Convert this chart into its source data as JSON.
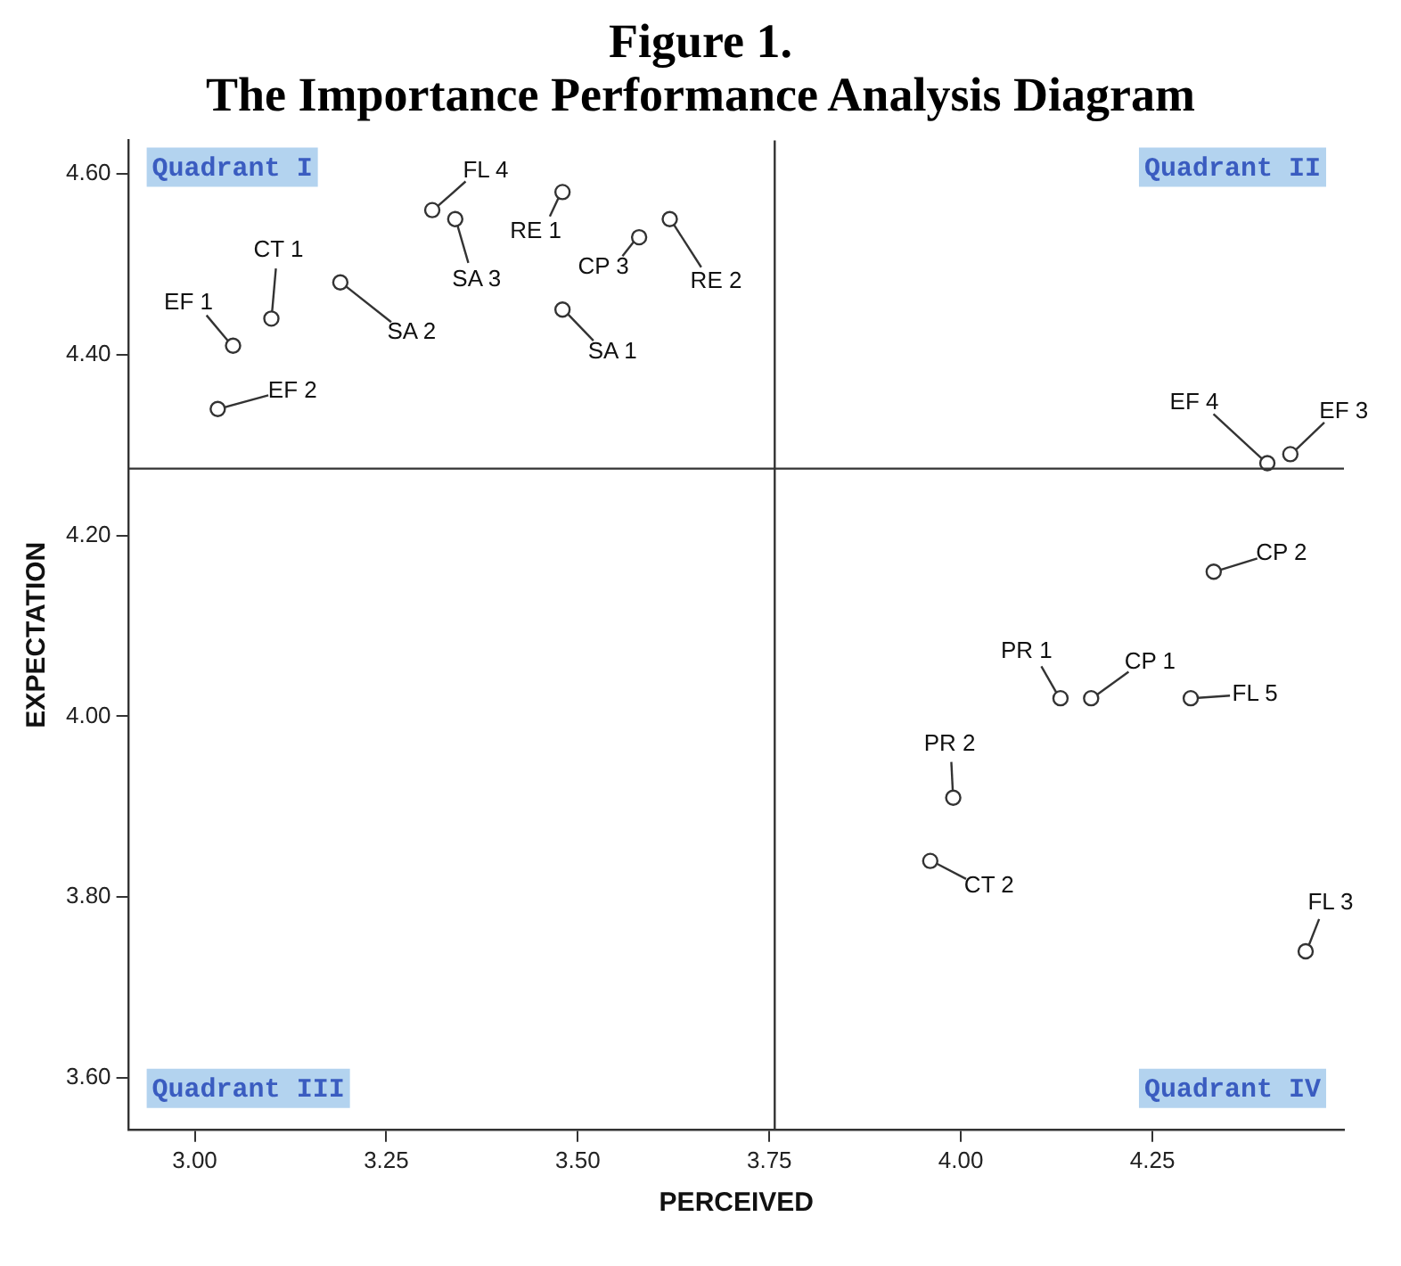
{
  "chart_data": {
    "type": "scatter",
    "title": "Figure 1.",
    "subtitle": "The Importance Performance Analysis Diagram",
    "xlabel": "PERCEIVED",
    "ylabel": "EXPECTATION",
    "series": [
      {
        "color": "#333333",
        "x": [
          3.31,
          3.34,
          3.48,
          3.58,
          3.62,
          3.48,
          3.19,
          3.1,
          3.05,
          3.03,
          4.4,
          4.43,
          4.33,
          4.13,
          4.17,
          4.3,
          3.99,
          3.96,
          4.45
        ],
        "values": [
          4.56,
          4.55,
          4.58,
          4.53,
          4.55,
          4.45,
          4.48,
          4.44,
          4.41,
          4.34,
          4.28,
          4.29,
          4.16,
          4.02,
          4.02,
          4.02,
          3.91,
          3.84,
          3.74
        ]
      }
    ],
    "xlim": [
      2.914,
      4.5
    ],
    "ylim": [
      3.543,
      4.637
    ],
    "xticks": [
      {
        "value": 3,
        "label": "3.00"
      },
      {
        "value": 3.25,
        "label": "3.25"
      },
      {
        "value": 3.5,
        "label": "3.50"
      },
      {
        "value": 3.75,
        "label": "3.75"
      },
      {
        "value": 4,
        "label": "4.00"
      },
      {
        "value": 4.25,
        "label": "4.25"
      }
    ],
    "yticks": [
      {
        "value": 3.6,
        "label": "3.60"
      },
      {
        "value": 3.8,
        "label": "3.80"
      },
      {
        "value": 4,
        "label": "4.00"
      },
      {
        "value": 4.2,
        "label": "4.20"
      },
      {
        "value": 4.4,
        "label": "4.40"
      },
      {
        "value": 4.6,
        "label": "4.60"
      }
    ],
    "ref_lines": [
      {
        "axis": "x",
        "value": 3.757,
        "color": "#333333"
      },
      {
        "axis": "y",
        "value": 4.274,
        "color": "#333333"
      }
    ],
    "marker": "circle",
    "grid": false,
    "legend": false,
    "annotations": [
      "Quadrant I",
      "Quadrant II",
      "Quadrant III",
      "Quadrant IV",
      {
        "text": "FL 4",
        "x": 3.31,
        "y": 4.56
      },
      {
        "text": "SA 3",
        "x": 3.34,
        "y": 4.55
      },
      {
        "text": "RE 1",
        "x": 3.48,
        "y": 4.58
      },
      {
        "text": "CP 3",
        "x": 3.58,
        "y": 4.53
      },
      {
        "text": "RE 2",
        "x": 3.62,
        "y": 4.55
      },
      {
        "text": "SA 1",
        "x": 3.48,
        "y": 4.45
      },
      {
        "text": "SA 2",
        "x": 3.19,
        "y": 4.48
      },
      {
        "text": "CT 1",
        "x": 3.1,
        "y": 4.44
      },
      {
        "text": "EF 1",
        "x": 3.05,
        "y": 4.41
      },
      {
        "text": "EF 2",
        "x": 3.03,
        "y": 4.34
      },
      {
        "text": "EF 4",
        "x": 4.4,
        "y": 4.28
      },
      {
        "text": "EF 3",
        "x": 4.43,
        "y": 4.29
      },
      {
        "text": "CP 2",
        "x": 4.33,
        "y": 4.16
      },
      {
        "text": "PR 1",
        "x": 4.13,
        "y": 4.02
      },
      {
        "text": "CP 1",
        "x": 4.17,
        "y": 4.02
      },
      {
        "text": "FL 5",
        "x": 4.3,
        "y": 4.02
      },
      {
        "text": "PR 2",
        "x": 3.99,
        "y": 3.91
      },
      {
        "text": "CT 2",
        "x": 3.96,
        "y": 3.84
      },
      {
        "text": "FL 3",
        "x": 4.45,
        "y": 3.74
      }
    ]
  }
}
